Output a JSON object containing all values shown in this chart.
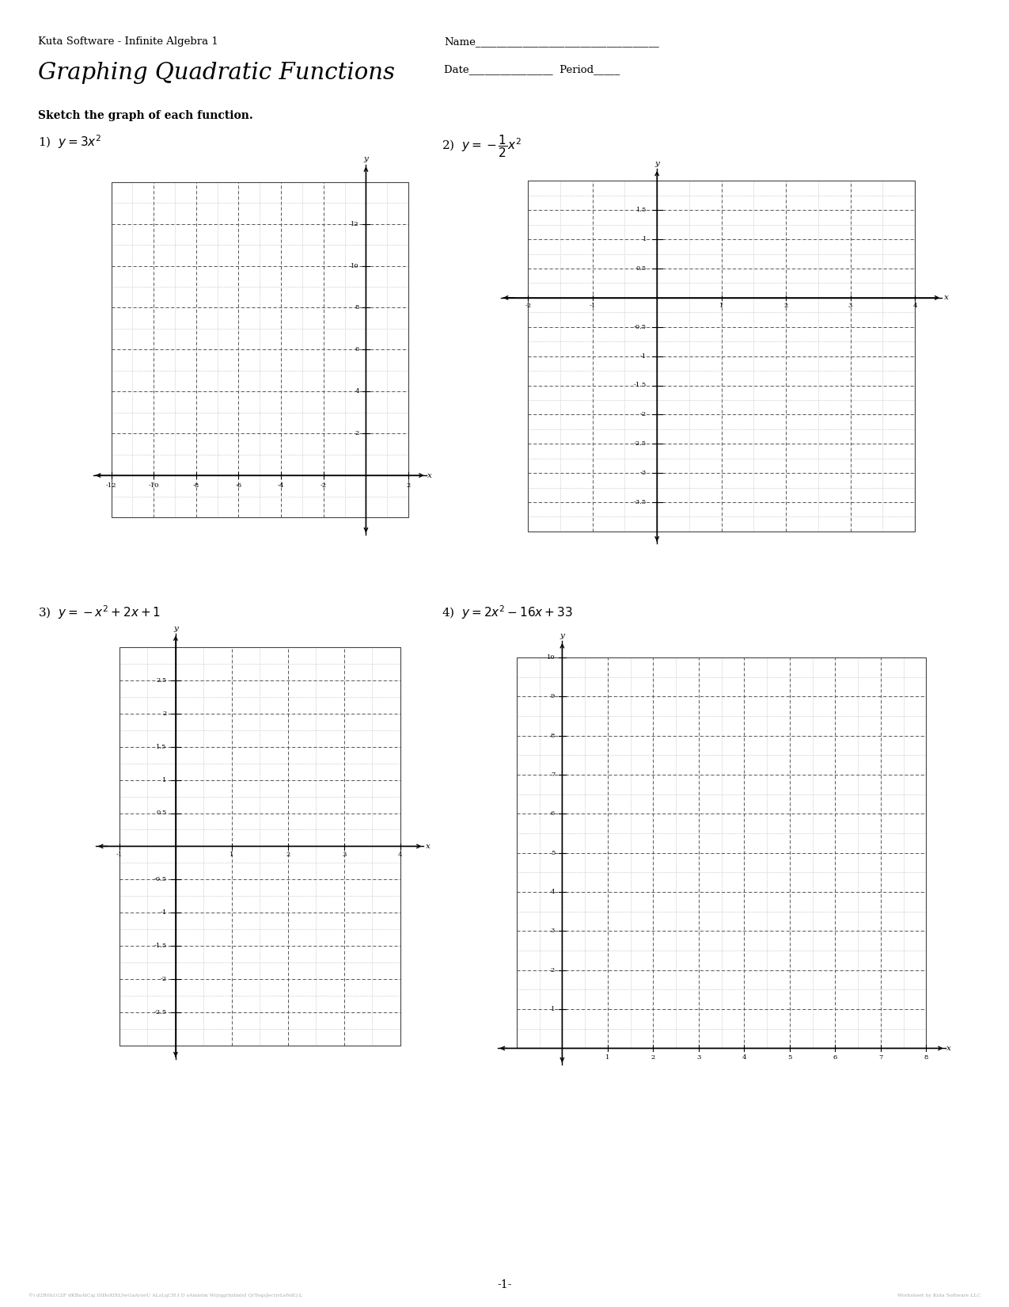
{
  "title": "Graphing Quadratic Functions",
  "subtitle": "Kuta Software - Infinite Algebra 1",
  "instruction": "Sketch the graph of each function.",
  "problems": [
    {
      "number": "1)",
      "latex": "$y = 3x^2$",
      "xmin": -12,
      "xmax": 2,
      "ymin": -2,
      "ymax": 14,
      "x_axis_y": 0,
      "y_axis_x": 0,
      "xtick_step": 2,
      "ytick_step": 2,
      "x_minor": 1,
      "y_minor": 1,
      "xticks": [
        -12,
        -10,
        -8,
        -6,
        -4,
        -2,
        2
      ],
      "yticks": [
        2,
        4,
        6,
        8,
        10,
        12
      ],
      "draw_curve": false,
      "coeffs": [
        3,
        0,
        0
      ]
    },
    {
      "number": "2)",
      "latex": "$y = -\\dfrac{1}{2}x^2$",
      "xmin": -2,
      "xmax": 4,
      "ymin": -4,
      "ymax": 2,
      "x_axis_y": 0,
      "y_axis_x": 0,
      "xtick_step": 1,
      "ytick_step": 0.5,
      "x_minor": 0.5,
      "y_minor": 0.25,
      "xticks": [
        -2,
        -1,
        1,
        2,
        3,
        4
      ],
      "yticks": [
        -3.5,
        -3.0,
        -2.5,
        -2.0,
        -1.5,
        -1.0,
        -0.5,
        0.5,
        1.0,
        1.5
      ],
      "draw_curve": false,
      "coeffs": [
        -0.5,
        0,
        0
      ]
    },
    {
      "number": "3)",
      "latex": "$y = -x^2 + 2x + 1$",
      "xmin": -1,
      "xmax": 4,
      "ymin": -3,
      "ymax": 3,
      "x_axis_y": 0,
      "y_axis_x": 0,
      "xtick_step": 1,
      "ytick_step": 0.5,
      "x_minor": 0.5,
      "y_minor": 0.25,
      "xticks": [
        -1,
        1,
        2,
        3,
        4
      ],
      "yticks": [
        -2.5,
        -2.0,
        -1.5,
        -1.0,
        -0.5,
        0.5,
        1.0,
        1.5,
        2.0,
        2.5
      ],
      "draw_curve": false,
      "coeffs": [
        -1,
        2,
        1
      ]
    },
    {
      "number": "4)",
      "latex": "$y = 2x^2 - 16x + 33$",
      "xmin": -1,
      "xmax": 8,
      "ymin": 0,
      "ymax": 10,
      "x_axis_y": 0,
      "y_axis_x": 0,
      "xtick_step": 1,
      "ytick_step": 1,
      "x_minor": 0.5,
      "y_minor": 0.5,
      "xticks": [
        1,
        2,
        3,
        4,
        5,
        6,
        7,
        8
      ],
      "yticks": [
        1,
        2,
        3,
        4,
        5,
        6,
        7,
        8,
        9,
        10
      ],
      "draw_curve": false,
      "coeffs": [
        2,
        -16,
        33
      ]
    }
  ],
  "bg_color": "#ffffff",
  "text_color": "#000000",
  "major_grid_color": "#555555",
  "minor_grid_color": "#999999",
  "axis_color": "#000000",
  "page_number": "-1-",
  "footer_left": "©i d2R0h1G2F dKBuAtCaj ISHoXfXt3wGaAroeU ALsLqCH.t D sAmlelm WrjiqgrhztmlsI QrTeqsJecrjvLeNdQ.L",
  "footer_right": "Worksheet by Kuta Software LLC"
}
